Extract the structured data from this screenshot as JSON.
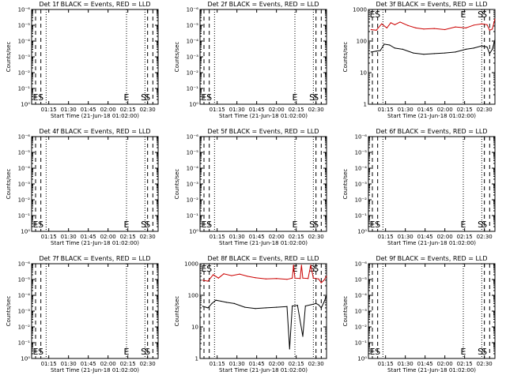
{
  "colors": {
    "events": "#000000",
    "lld": "#cc0000",
    "background": "#ffffff"
  },
  "chart_data": [
    {
      "type": "line",
      "panel": "det1",
      "title": "Det 1f BLACK = Events, RED = LLD",
      "xlabel": "Start Time (21-Jun-18 01:02:00)",
      "ylabel": "Counts/sec",
      "xticks": [
        "01:15",
        "01:30",
        "01:45",
        "02:00",
        "02:15",
        "02:30"
      ],
      "yscale": "log",
      "yticks": [
        "10⁰",
        "10⁻¹",
        "10⁻²",
        "10⁻³",
        "10⁻⁴",
        "10⁻⁵",
        "10⁻⁶"
      ],
      "markers": [
        {
          "label": "E",
          "x": "02:14"
        },
        {
          "label": "S",
          "x": "02:27"
        },
        {
          "label": "E",
          "x": "01:05"
        },
        {
          "label": "S",
          "x": "01:09"
        },
        {
          "label": "S",
          "x": "02:30"
        }
      ],
      "series": []
    },
    {
      "type": "line",
      "panel": "det2",
      "title": "Det 2f BLACK = Events, RED = LLD",
      "xlabel": "Start Time (21-Jun-18 01:02:00)",
      "ylabel": "Counts/sec",
      "xticks": [
        "01:15",
        "01:30",
        "01:45",
        "02:00",
        "02:15",
        "02:30"
      ],
      "yscale": "log",
      "yticks": [
        "10⁰",
        "10⁻¹",
        "10⁻²",
        "10⁻³",
        "10⁻⁴",
        "10⁻⁵",
        "10⁻⁶"
      ],
      "markers": [
        {
          "label": "E",
          "x": "02:14"
        },
        {
          "label": "S",
          "x": "02:27"
        },
        {
          "label": "E",
          "x": "01:05"
        },
        {
          "label": "S",
          "x": "01:09"
        },
        {
          "label": "S",
          "x": "02:30"
        }
      ],
      "series": []
    },
    {
      "type": "line",
      "panel": "det3",
      "title": "Det 3f BLACK = Events, RED = LLD",
      "xlabel": "Start Time (21-Jun-18 01:02:00)",
      "ylabel": "Counts/sec",
      "xticks": [
        "01:15",
        "01:30",
        "01:45",
        "02:00",
        "02:15",
        "02:30"
      ],
      "yscale": "log",
      "yticks": [
        "1",
        "10",
        "100",
        "1000"
      ],
      "markers": [
        {
          "label": "E",
          "x": "02:14"
        },
        {
          "label": "S",
          "x": "02:27"
        },
        {
          "label": "E",
          "x": "01:05"
        },
        {
          "label": "S",
          "x": "01:09"
        },
        {
          "label": "S",
          "x": "02:30"
        }
      ],
      "series": [
        {
          "name": "LLD",
          "color": "red",
          "x": [
            2,
            6,
            10,
            14,
            17,
            20,
            24,
            30,
            36,
            42,
            50,
            58,
            66,
            74,
            80,
            86,
            90,
            92,
            94,
            96
          ],
          "values": [
            230,
            220,
            350,
            260,
            380,
            330,
            400,
            310,
            260,
            240,
            250,
            230,
            280,
            260,
            320,
            350,
            330,
            220,
            240,
            500
          ]
        },
        {
          "name": "Events",
          "color": "black",
          "x": [
            2,
            6,
            9,
            12,
            16,
            20,
            26,
            34,
            42,
            50,
            58,
            66,
            74,
            80,
            86,
            90,
            92,
            94,
            96
          ],
          "values": [
            45,
            48,
            50,
            80,
            75,
            60,
            55,
            42,
            38,
            40,
            42,
            45,
            55,
            60,
            70,
            65,
            40,
            55,
            110
          ]
        }
      ]
    },
    {
      "type": "line",
      "panel": "det4",
      "title": "Det 4f BLACK = Events, RED = LLD",
      "xlabel": "Start Time (21-Jun-18 01:02:00)",
      "ylabel": "Counts/sec",
      "xticks": [
        "01:15",
        "01:30",
        "01:45",
        "02:00",
        "02:15",
        "02:30"
      ],
      "yscale": "log",
      "yticks": [
        "10⁰",
        "10⁻¹",
        "10⁻²",
        "10⁻³",
        "10⁻⁴",
        "10⁻⁵",
        "10⁻⁶"
      ],
      "markers": [
        {
          "label": "E",
          "x": "02:14"
        },
        {
          "label": "S",
          "x": "02:27"
        },
        {
          "label": "E",
          "x": "01:05"
        },
        {
          "label": "S",
          "x": "01:09"
        },
        {
          "label": "S",
          "x": "02:30"
        }
      ],
      "series": []
    },
    {
      "type": "line",
      "panel": "det5",
      "title": "Det 5f BLACK = Events, RED = LLD",
      "xlabel": "Start Time (21-Jun-18 01:02:00)",
      "ylabel": "Counts/sec",
      "xticks": [
        "01:15",
        "01:30",
        "01:45",
        "02:00",
        "02:15",
        "02:30"
      ],
      "yscale": "log",
      "yticks": [
        "10⁰",
        "10⁻¹",
        "10⁻²",
        "10⁻³",
        "10⁻⁴",
        "10⁻⁵",
        "10⁻⁶"
      ],
      "markers": [
        {
          "label": "E",
          "x": "02:14"
        },
        {
          "label": "S",
          "x": "02:27"
        },
        {
          "label": "E",
          "x": "01:05"
        },
        {
          "label": "S",
          "x": "01:09"
        },
        {
          "label": "S",
          "x": "02:30"
        }
      ],
      "series": []
    },
    {
      "type": "line",
      "panel": "det6",
      "title": "Det 6f BLACK = Events, RED = LLD",
      "xlabel": "Start Time (21-Jun-18 01:02:00)",
      "ylabel": "Counts/sec",
      "xticks": [
        "01:15",
        "01:30",
        "01:45",
        "02:00",
        "02:15",
        "02:30"
      ],
      "yscale": "log",
      "yticks": [
        "10⁰",
        "10⁻¹",
        "10⁻²",
        "10⁻³",
        "10⁻⁴",
        "10⁻⁵",
        "10⁻⁶"
      ],
      "markers": [
        {
          "label": "E",
          "x": "02:14"
        },
        {
          "label": "S",
          "x": "02:27"
        },
        {
          "label": "E",
          "x": "01:05"
        },
        {
          "label": "S",
          "x": "01:09"
        },
        {
          "label": "S",
          "x": "02:30"
        }
      ],
      "series": []
    },
    {
      "type": "line",
      "panel": "det7",
      "title": "Det 7f BLACK = Events, RED = LLD",
      "xlabel": "Start Time (21-Jun-18 01:02:00)",
      "ylabel": "Counts/sec",
      "xticks": [
        "01:15",
        "01:30",
        "01:45",
        "02:00",
        "02:15",
        "02:30"
      ],
      "yscale": "log",
      "yticks": [
        "10⁰",
        "10⁻¹",
        "10⁻²",
        "10⁻³",
        "10⁻⁴",
        "10⁻⁵",
        "10⁻⁶"
      ],
      "markers": [
        {
          "label": "E",
          "x": "02:14"
        },
        {
          "label": "S",
          "x": "02:27"
        },
        {
          "label": "E",
          "x": "01:05"
        },
        {
          "label": "S",
          "x": "01:09"
        },
        {
          "label": "S",
          "x": "02:30"
        }
      ],
      "series": []
    },
    {
      "type": "line",
      "panel": "det8",
      "title": "Det 8f BLACK = Events, RED = LLD",
      "xlabel": "Start Time (21-Jun-18 01:02:00)",
      "ylabel": "Counts/sec",
      "xticks": [
        "01:15",
        "01:30",
        "01:45",
        "02:00",
        "02:15",
        "02:30"
      ],
      "yscale": "log",
      "yticks": [
        "1",
        "10",
        "100",
        "1000"
      ],
      "markers": [
        {
          "label": "E",
          "x": "02:14"
        },
        {
          "label": "S",
          "x": "02:27"
        },
        {
          "label": "E",
          "x": "01:05"
        },
        {
          "label": "S",
          "x": "01:09"
        },
        {
          "label": "S",
          "x": "02:30"
        }
      ],
      "series": [
        {
          "name": "LLD",
          "color": "red",
          "x": [
            2,
            6,
            10,
            14,
            18,
            24,
            30,
            36,
            42,
            50,
            58,
            66,
            70,
            71,
            72,
            76,
            77,
            78,
            82,
            84,
            86,
            90,
            92,
            94,
            96
          ],
          "values": [
            300,
            280,
            450,
            350,
            480,
            420,
            470,
            400,
            360,
            330,
            340,
            320,
            350,
            900,
            350,
            340,
            900,
            350,
            340,
            900,
            350,
            330,
            250,
            300,
            400
          ]
        },
        {
          "name": "Events",
          "color": "black",
          "x": [
            2,
            6,
            9,
            12,
            16,
            20,
            26,
            34,
            42,
            50,
            58,
            66,
            68,
            70,
            74,
            78,
            80,
            84,
            88,
            90,
            92,
            94,
            96
          ],
          "values": [
            45,
            40,
            55,
            70,
            65,
            60,
            55,
            42,
            38,
            40,
            42,
            44,
            2,
            46,
            48,
            5,
            46,
            50,
            55,
            50,
            40,
            60,
            100
          ]
        }
      ]
    },
    {
      "type": "line",
      "panel": "det9",
      "title": "Det 9f BLACK = Events, RED = LLD",
      "xlabel": "Start Time (21-Jun-18 01:02:00)",
      "ylabel": "Counts/sec",
      "xticks": [
        "01:15",
        "01:30",
        "01:45",
        "02:00",
        "02:15",
        "02:30"
      ],
      "yscale": "log",
      "yticks": [
        "10⁰",
        "10⁻¹",
        "10⁻²",
        "10⁻³",
        "10⁻⁴",
        "10⁻⁵",
        "10⁻⁶"
      ],
      "markers": [
        {
          "label": "E",
          "x": "02:14"
        },
        {
          "label": "S",
          "x": "02:27"
        },
        {
          "label": "E",
          "x": "01:05"
        },
        {
          "label": "S",
          "x": "01:09"
        },
        {
          "label": "S",
          "x": "02:30"
        }
      ],
      "series": []
    }
  ]
}
